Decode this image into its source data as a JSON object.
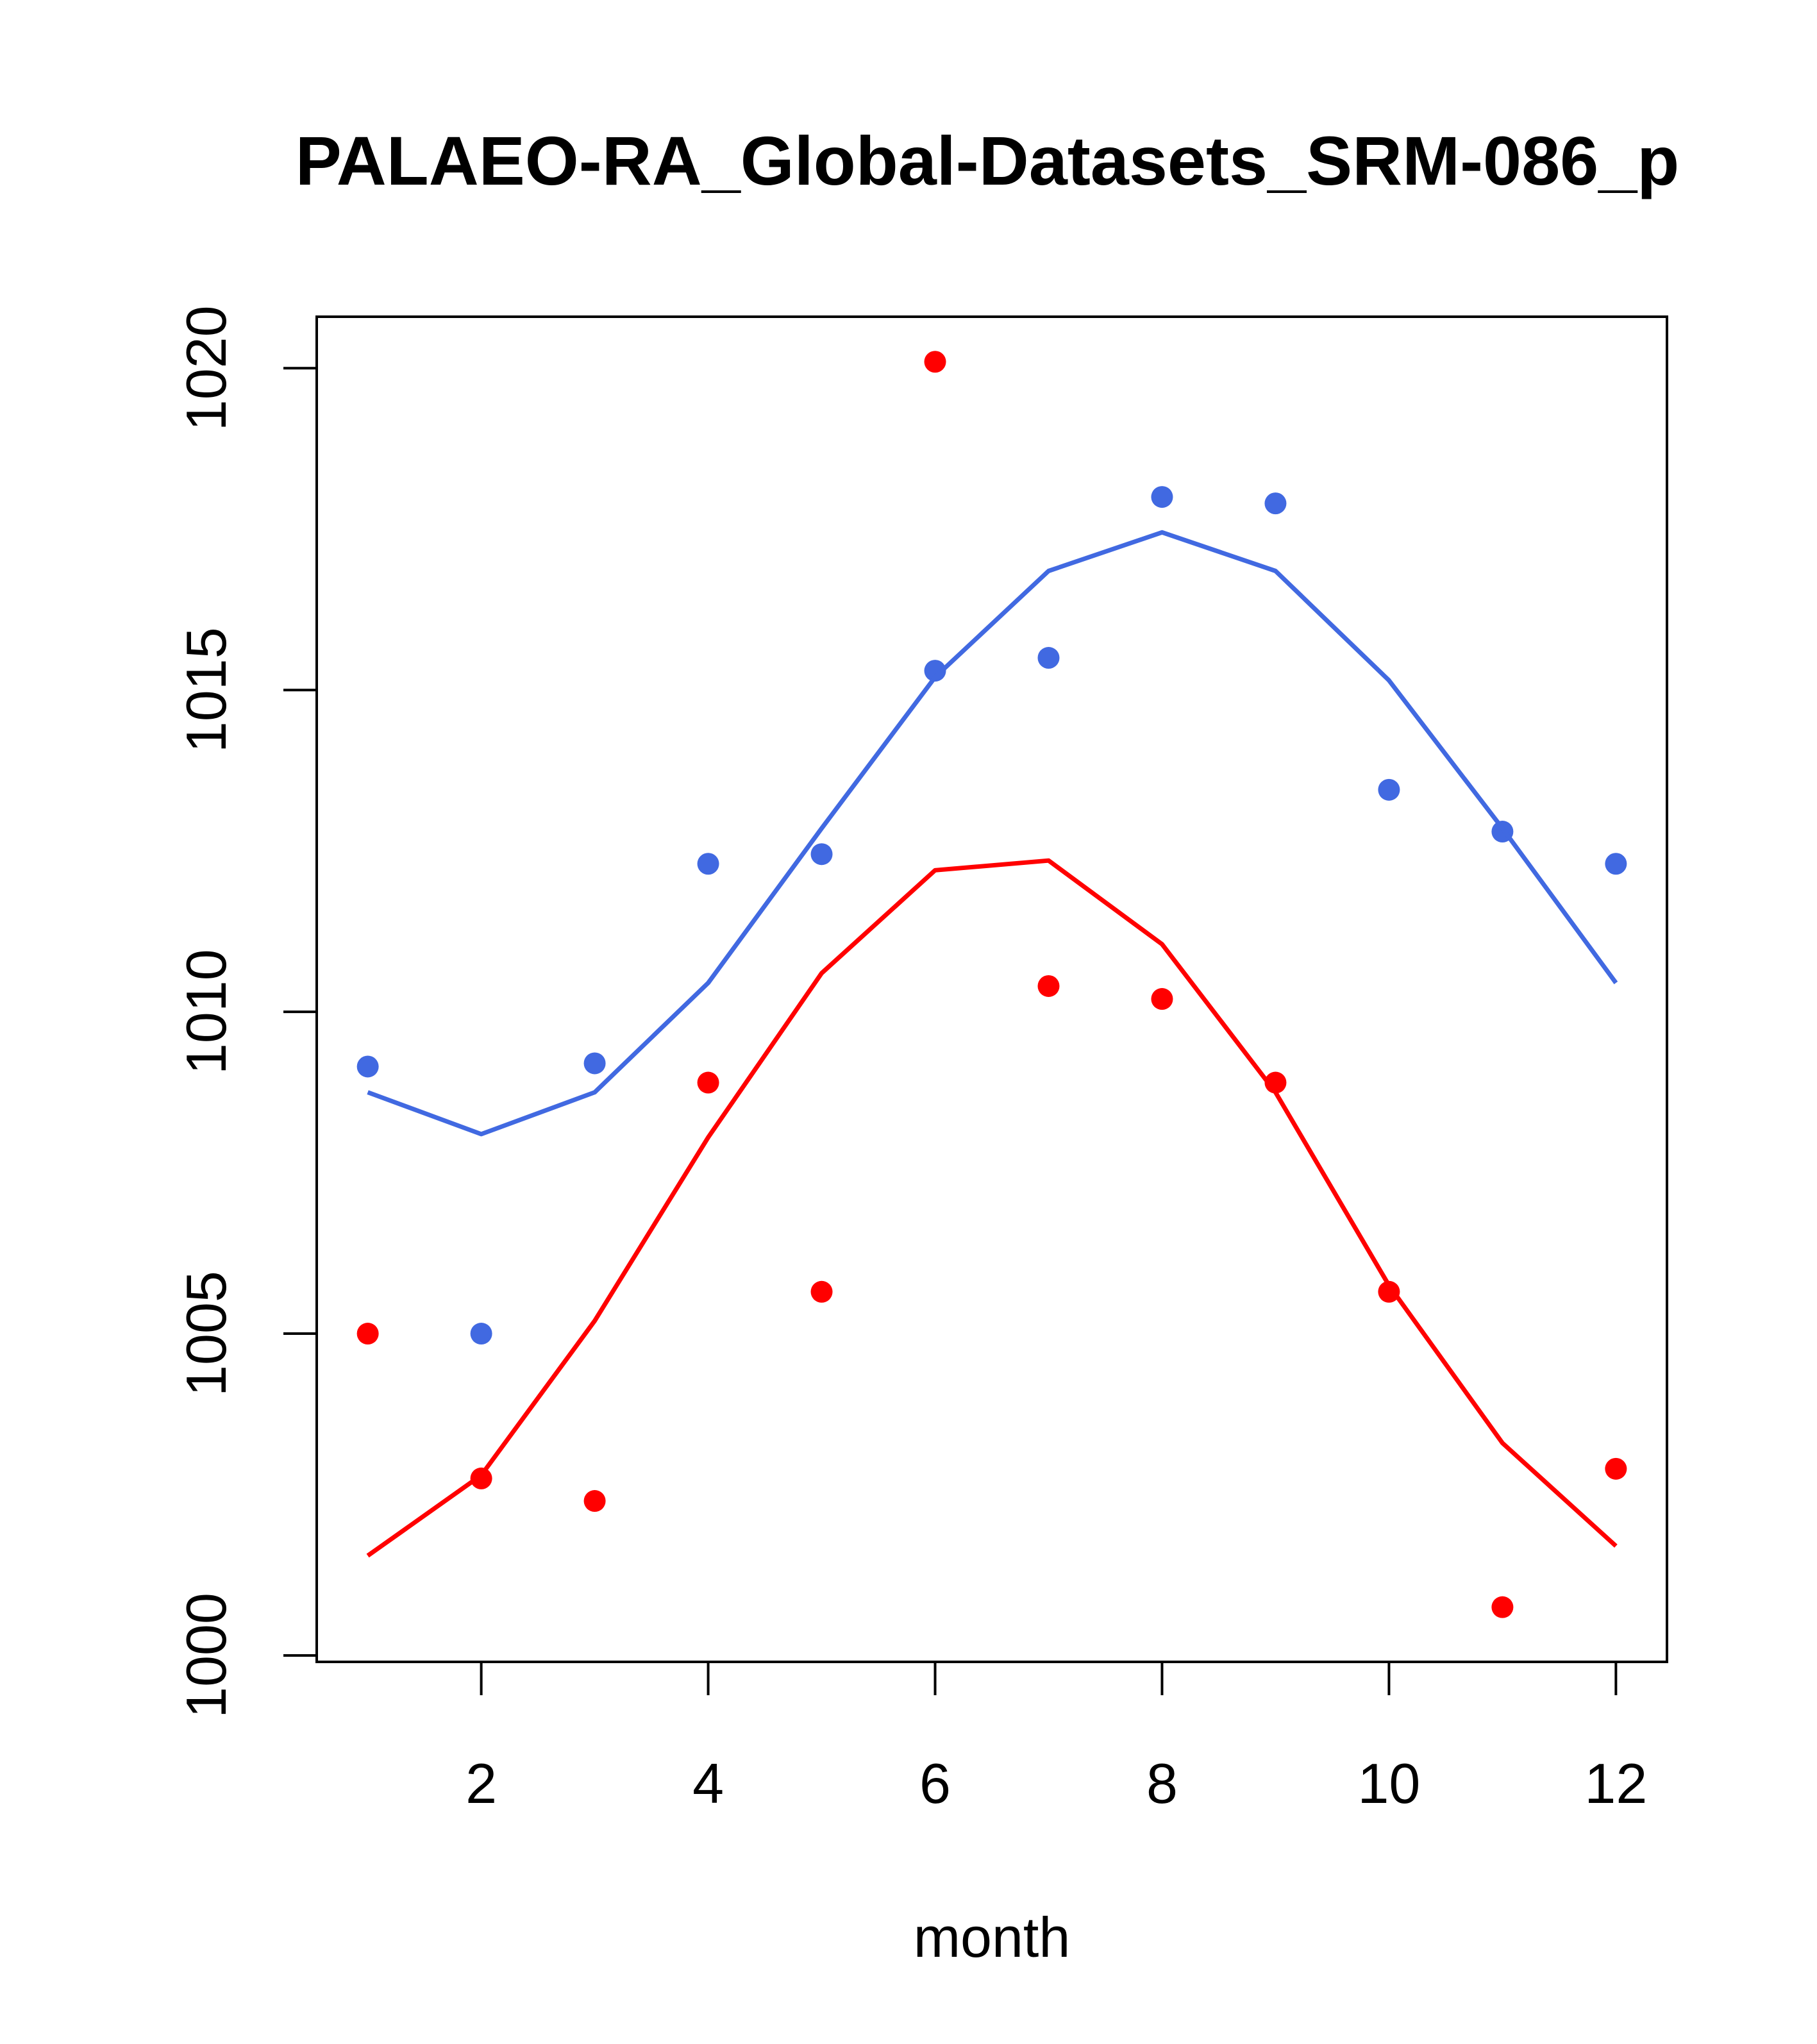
{
  "chart_data": {
    "type": "scatter",
    "title": "PALAEO-RA_Global-Datasets_SRM-086_p",
    "xlabel": "month",
    "ylabel": "",
    "xlim": [
      0.55,
      12.45
    ],
    "ylim": [
      999.9,
      1020.8
    ],
    "x_ticks": [
      2,
      4,
      6,
      8,
      10,
      12
    ],
    "x_tick_labels": [
      "2",
      "4",
      "6",
      "8",
      "10",
      "12"
    ],
    "y_ticks": [
      1000,
      1005,
      1010,
      1015,
      1020
    ],
    "y_tick_labels": [
      "1000",
      "1005",
      "1010",
      "1015",
      "1020"
    ],
    "series": [
      {
        "name": "blue points",
        "kind": "points",
        "color": "#4169E1",
        "x": [
          1,
          2,
          3,
          4,
          5,
          6,
          7,
          8,
          9,
          10,
          11,
          12
        ],
        "values": [
          1009.15,
          1005.0,
          1009.2,
          1012.3,
          1012.45,
          1015.3,
          1015.5,
          1018.0,
          1017.9,
          1013.45,
          1012.8,
          1012.3
        ]
      },
      {
        "name": "blue line",
        "kind": "line",
        "color": "#4169E1",
        "x": [
          1,
          2,
          3,
          4,
          5,
          6,
          7,
          8,
          9,
          10,
          11,
          12
        ],
        "values": [
          1008.75,
          1008.1,
          1008.75,
          1010.45,
          1012.85,
          1015.2,
          1016.85,
          1017.45,
          1016.85,
          1015.15,
          1012.85,
          1010.45
        ]
      },
      {
        "name": "red points",
        "kind": "points",
        "color": "#FF0000",
        "x": [
          1,
          2,
          3,
          4,
          5,
          6,
          7,
          8,
          9,
          10,
          11,
          12
        ],
        "values": [
          1005.0,
          1002.75,
          1002.4,
          1008.9,
          1005.65,
          1020.1,
          1010.4,
          1010.2,
          1008.9,
          1005.65,
          1000.75,
          1002.9
        ]
      },
      {
        "name": "red line",
        "kind": "line",
        "color": "#FF0000",
        "x": [
          1,
          2,
          3,
          4,
          5,
          6,
          7,
          8,
          9,
          10,
          11,
          12
        ],
        "values": [
          1001.55,
          1002.8,
          1005.2,
          1008.05,
          1010.6,
          1012.2,
          1012.35,
          1011.05,
          1008.75,
          1005.75,
          1003.3,
          1001.7
        ]
      }
    ]
  }
}
